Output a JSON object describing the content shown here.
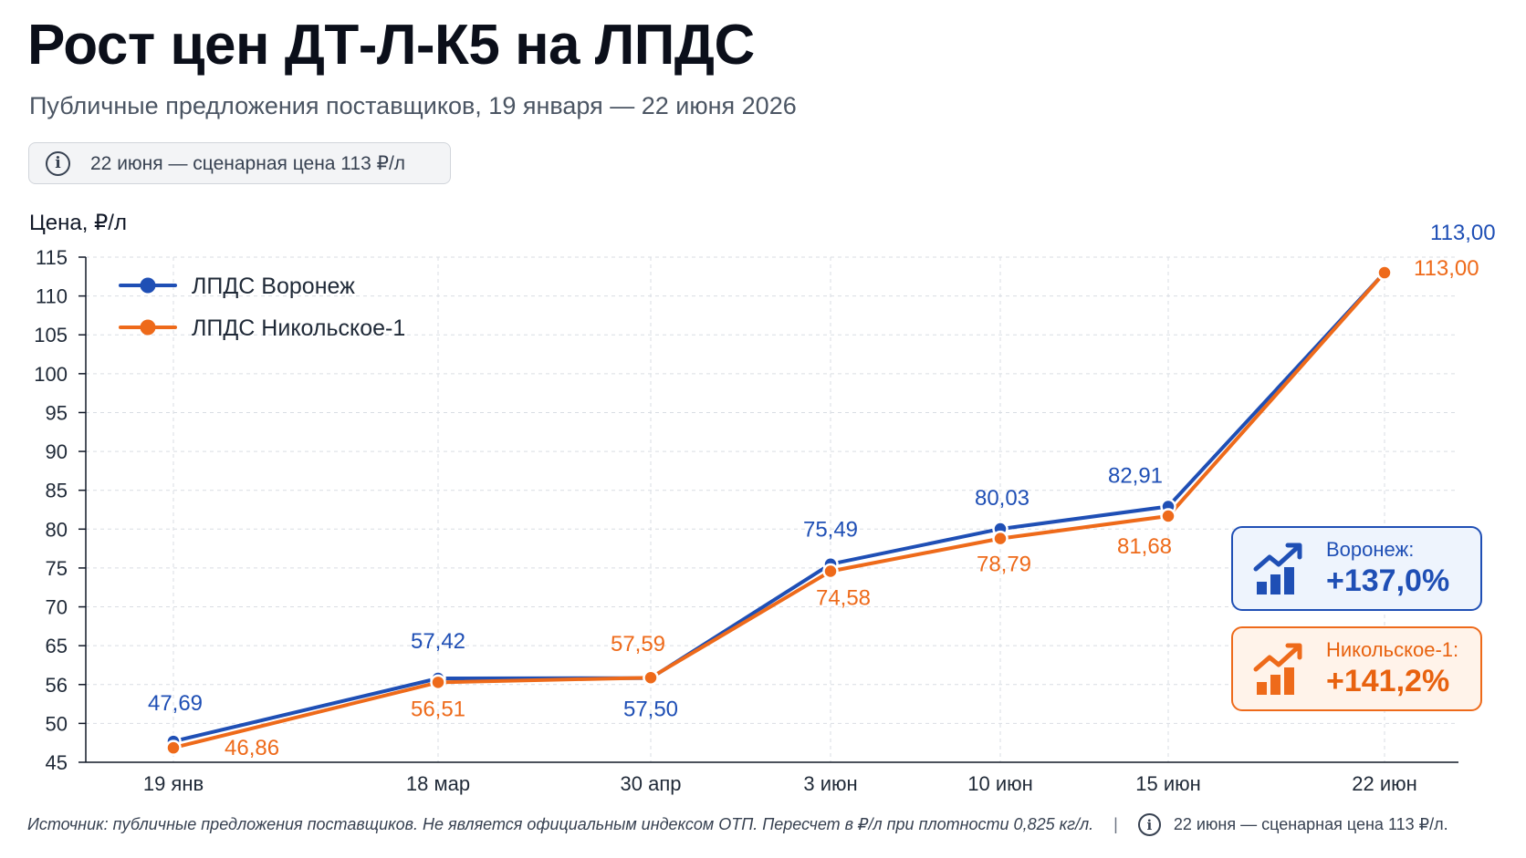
{
  "title": "Рост цен ДТ-Л-К5 на ЛПДС",
  "subtitle": "Публичные предложения поставщиков, 19 января — 22 июня 2026",
  "note": {
    "icon": "info-icon",
    "text": "22 июня — сценарная цена 113 ₽/л"
  },
  "chart_data": {
    "type": "line",
    "ylabel": "Цена, ₽/л",
    "ylim": [
      45,
      115
    ],
    "yticks": [
      "45",
      "50",
      "56",
      "65",
      "70",
      "75",
      "80",
      "85",
      "90",
      "95",
      "100",
      "105",
      "110",
      "115"
    ],
    "categories": [
      "19 янв",
      "18 мар",
      "30 апр",
      "3 июн",
      "10 июн",
      "15 июн",
      "22 июн"
    ],
    "grid": true,
    "legend_position": "top-left",
    "series": [
      {
        "name": "ЛПДС Воронеж",
        "color": "#1f4fb5",
        "values": [
          47.69,
          57.42,
          57.5,
          75.49,
          80.03,
          82.91,
          113.0
        ],
        "labels": [
          "47,69",
          "57,42",
          "57,50",
          "75,49",
          "80,03",
          "82,91",
          "113,00"
        ]
      },
      {
        "name": "ЛПДС Никольское-1",
        "color": "#ee6a1a",
        "values": [
          46.86,
          56.51,
          57.59,
          74.58,
          78.79,
          81.68,
          113.0
        ],
        "labels": [
          "46,86",
          "56,51",
          "57,59",
          "74,58",
          "78,79",
          "81,68",
          "113,00"
        ]
      }
    ]
  },
  "badges": [
    {
      "icon": "growth-chart-icon",
      "label": "Воронеж:",
      "value": "+137,0%",
      "color": "#1f4fb5"
    },
    {
      "icon": "growth-chart-icon",
      "label": "Никольское-1:",
      "value": "+141,2%",
      "color": "#ee6a1a"
    }
  ],
  "footer": {
    "source": "Источник: публичные предложения поставщиков. Не является официальным индексом ОТП.  Пересчет в ₽/л при плотности 0,825 кг/л.",
    "separator": "|",
    "note": "22 июня — сценарная цена 113 ₽/л."
  }
}
